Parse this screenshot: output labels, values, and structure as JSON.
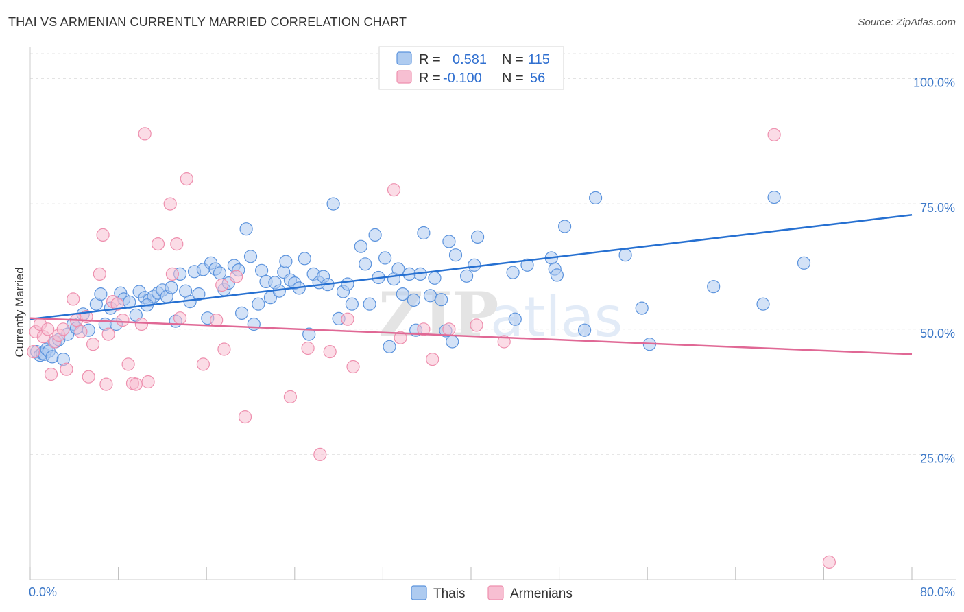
{
  "header": {
    "title": "THAI VS ARMENIAN CURRENTLY MARRIED CORRELATION CHART",
    "source": "Source: ZipAtlas.com"
  },
  "watermark": {
    "zip": "ZIP",
    "atlas": "atlas"
  },
  "legend_top": {
    "rows": [
      {
        "r_label": "R =",
        "r_value": "0.581",
        "n_label": "N =",
        "n_value": "115",
        "color": "#aecbf0"
      },
      {
        "r_label": "R =",
        "r_value": "-0.100",
        "n_label": "N =",
        "n_value": "56",
        "color": "#f7bfd2"
      }
    ]
  },
  "chart_data": {
    "type": "scatter",
    "title": "THAI VS ARMENIAN CURRENTLY MARRIED CORRELATION CHART",
    "xlabel": "",
    "ylabel": "Currently Married",
    "xlim": [
      0,
      80
    ],
    "ylim": [
      0,
      105
    ],
    "x_tick_labels": [
      "0.0%",
      "80.0%"
    ],
    "y_tick_values": [
      25,
      50,
      75,
      100
    ],
    "y_tick_labels": [
      "25.0%",
      "50.0%",
      "75.0%",
      "100.0%"
    ],
    "grid": true,
    "legend_position": "bottom",
    "series": [
      {
        "name": "Thais",
        "color": "#5b93dd",
        "fill": "#aecbf0",
        "trend": {
          "x": [
            0,
            80
          ],
          "y": [
            52.0,
            72.8
          ],
          "color": "#2670d1"
        },
        "points": [
          [
            0.6,
            45.5
          ],
          [
            0.9,
            44.8
          ],
          [
            1.1,
            45.2
          ],
          [
            1.3,
            45.0
          ],
          [
            1.5,
            46.0
          ],
          [
            1.7,
            45.6
          ],
          [
            2.0,
            44.5
          ],
          [
            2.3,
            47.5
          ],
          [
            2.6,
            47.9
          ],
          [
            3.0,
            44.0
          ],
          [
            3.4,
            49.0
          ],
          [
            3.9,
            51.0
          ],
          [
            4.2,
            50.2
          ],
          [
            4.8,
            53.0
          ],
          [
            5.3,
            49.8
          ],
          [
            6.0,
            55.0
          ],
          [
            6.4,
            57.0
          ],
          [
            6.8,
            51.0
          ],
          [
            7.3,
            54.2
          ],
          [
            7.8,
            51.0
          ],
          [
            8.2,
            57.2
          ],
          [
            8.5,
            56.0
          ],
          [
            9.0,
            55.4
          ],
          [
            9.6,
            52.8
          ],
          [
            9.9,
            57.5
          ],
          [
            10.4,
            56.3
          ],
          [
            10.8,
            55.8
          ],
          [
            11.2,
            56.5
          ],
          [
            11.6,
            57.2
          ],
          [
            12.0,
            57.8
          ],
          [
            12.4,
            56.5
          ],
          [
            12.8,
            58.3
          ],
          [
            13.2,
            51.6
          ],
          [
            13.6,
            61.0
          ],
          [
            14.1,
            57.6
          ],
          [
            14.5,
            55.5
          ],
          [
            14.9,
            61.5
          ],
          [
            15.3,
            57.0
          ],
          [
            15.7,
            61.9
          ],
          [
            16.1,
            52.2
          ],
          [
            16.4,
            63.2
          ],
          [
            16.8,
            62.0
          ],
          [
            17.2,
            61.2
          ],
          [
            17.6,
            57.9
          ],
          [
            18.0,
            59.2
          ],
          [
            18.5,
            62.7
          ],
          [
            18.9,
            61.8
          ],
          [
            19.2,
            53.2
          ],
          [
            19.6,
            70.0
          ],
          [
            20.0,
            64.5
          ],
          [
            20.3,
            51.0
          ],
          [
            20.7,
            55.0
          ],
          [
            21.0,
            61.7
          ],
          [
            21.4,
            59.5
          ],
          [
            21.8,
            56.3
          ],
          [
            22.2,
            59.3
          ],
          [
            22.6,
            57.6
          ],
          [
            23.0,
            61.4
          ],
          [
            23.2,
            63.5
          ],
          [
            23.6,
            59.8
          ],
          [
            24.0,
            59.2
          ],
          [
            24.4,
            58.2
          ],
          [
            24.9,
            64.1
          ],
          [
            25.3,
            49.0
          ],
          [
            25.7,
            61.0
          ],
          [
            26.2,
            59.3
          ],
          [
            26.6,
            60.5
          ],
          [
            27.0,
            58.9
          ],
          [
            27.5,
            75.0
          ],
          [
            28.0,
            52.1
          ],
          [
            28.4,
            57.5
          ],
          [
            28.8,
            59.0
          ],
          [
            29.2,
            55.0
          ],
          [
            30.0,
            66.5
          ],
          [
            30.4,
            63.0
          ],
          [
            30.8,
            55.0
          ],
          [
            31.3,
            68.8
          ],
          [
            31.6,
            60.3
          ],
          [
            32.2,
            64.2
          ],
          [
            32.6,
            46.5
          ],
          [
            33.0,
            60.0
          ],
          [
            33.4,
            62.0
          ],
          [
            33.8,
            57.0
          ],
          [
            34.4,
            61.0
          ],
          [
            34.8,
            55.8
          ],
          [
            35.0,
            49.8
          ],
          [
            35.4,
            61.0
          ],
          [
            35.7,
            69.2
          ],
          [
            36.3,
            56.7
          ],
          [
            36.7,
            60.2
          ],
          [
            37.3,
            55.9
          ],
          [
            37.7,
            49.7
          ],
          [
            38.0,
            67.5
          ],
          [
            38.3,
            47.5
          ],
          [
            38.6,
            64.8
          ],
          [
            39.6,
            60.6
          ],
          [
            40.3,
            62.8
          ],
          [
            40.6,
            68.4
          ],
          [
            43.8,
            61.3
          ],
          [
            45.1,
            62.8
          ],
          [
            47.3,
            64.2
          ],
          [
            47.6,
            62.0
          ],
          [
            47.8,
            60.8
          ],
          [
            48.5,
            70.5
          ],
          [
            50.3,
            49.8
          ],
          [
            51.3,
            76.2
          ],
          [
            54.0,
            64.8
          ],
          [
            55.5,
            54.2
          ],
          [
            56.2,
            47.0
          ],
          [
            67.5,
            76.3
          ],
          [
            70.2,
            63.2
          ],
          [
            66.5,
            55.0
          ],
          [
            62.0,
            58.5
          ],
          [
            44.0,
            52.0
          ],
          [
            10.6,
            54.8
          ]
        ]
      },
      {
        "name": "Armenians",
        "color": "#ee8fae",
        "fill": "#f7bfd2",
        "trend": {
          "x": [
            0,
            80
          ],
          "y": [
            52.2,
            45.0
          ],
          "color": "#e06895"
        },
        "points": [
          [
            0.3,
            45.5
          ],
          [
            0.5,
            49.5
          ],
          [
            0.9,
            51.0
          ],
          [
            1.2,
            48.5
          ],
          [
            1.6,
            50.0
          ],
          [
            1.9,
            41.0
          ],
          [
            2.2,
            47.5
          ],
          [
            2.6,
            48.8
          ],
          [
            3.0,
            50.0
          ],
          [
            3.3,
            42.0
          ],
          [
            3.9,
            56.0
          ],
          [
            4.2,
            51.8
          ],
          [
            4.6,
            49.5
          ],
          [
            5.1,
            52.5
          ],
          [
            5.3,
            40.5
          ],
          [
            5.7,
            47.0
          ],
          [
            6.3,
            61.0
          ],
          [
            6.6,
            68.8
          ],
          [
            6.9,
            39.0
          ],
          [
            7.1,
            49.0
          ],
          [
            7.5,
            55.5
          ],
          [
            7.9,
            55.0
          ],
          [
            8.4,
            51.8
          ],
          [
            8.9,
            43.0
          ],
          [
            9.3,
            39.2
          ],
          [
            9.6,
            39.0
          ],
          [
            10.1,
            51.0
          ],
          [
            10.4,
            89.0
          ],
          [
            10.7,
            39.5
          ],
          [
            11.6,
            67.0
          ],
          [
            12.7,
            75.0
          ],
          [
            12.9,
            61.0
          ],
          [
            13.3,
            67.0
          ],
          [
            13.6,
            52.2
          ],
          [
            14.2,
            80.0
          ],
          [
            15.7,
            43.0
          ],
          [
            16.9,
            51.8
          ],
          [
            17.4,
            58.8
          ],
          [
            17.6,
            46.0
          ],
          [
            18.7,
            60.5
          ],
          [
            19.5,
            32.5
          ],
          [
            23.6,
            36.5
          ],
          [
            25.2,
            46.2
          ],
          [
            26.3,
            25.0
          ],
          [
            27.2,
            45.5
          ],
          [
            28.8,
            52.0
          ],
          [
            29.3,
            42.5
          ],
          [
            33.0,
            77.8
          ],
          [
            33.6,
            48.3
          ],
          [
            35.7,
            50.0
          ],
          [
            36.5,
            44.0
          ],
          [
            38.0,
            50.0
          ],
          [
            43.0,
            47.5
          ],
          [
            67.5,
            88.8
          ],
          [
            72.5,
            3.5
          ],
          [
            40.5,
            50.8
          ]
        ]
      }
    ]
  },
  "bottom_legend": {
    "items": [
      {
        "label": "Thais",
        "color": "#aecbf0"
      },
      {
        "label": "Armenians",
        "color": "#f7bfd2"
      }
    ]
  }
}
